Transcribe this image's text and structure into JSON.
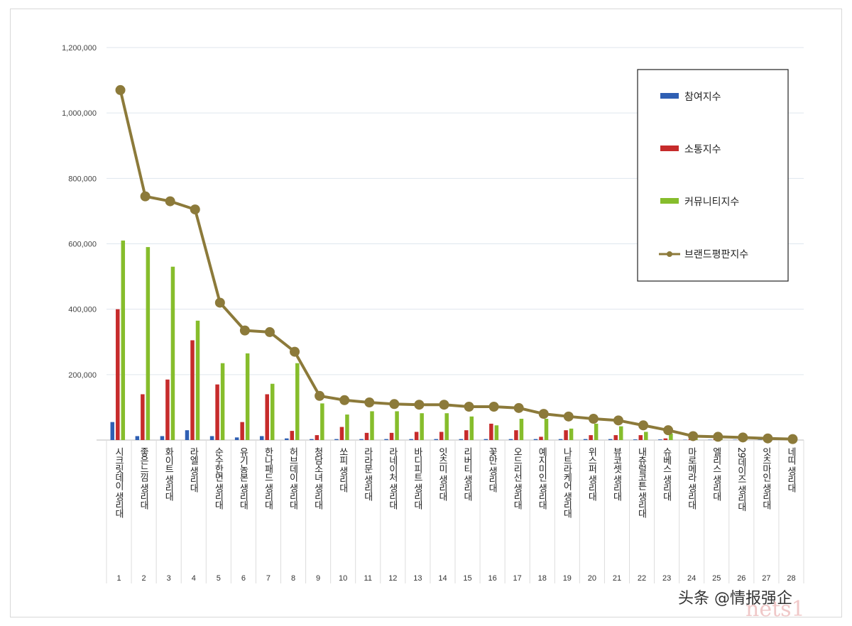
{
  "chart_data": {
    "type": "bar",
    "ylim": [
      0,
      1200000
    ],
    "yticks": [
      "1,200,000",
      "1,000,000",
      "800,000",
      "600,000",
      "400,000",
      "200,000"
    ],
    "categories": [
      "시크릿데이 생리대",
      "좋은느낌 생리대",
      "화이트 생리대",
      "라엘 생리대",
      "순수한면 생리대",
      "유기농본 생리대",
      "한나패드 생리대",
      "허브데이 생리대",
      "청담소녀 생리대",
      "쏘피 생리대",
      "라라문 생리대",
      "라네이처 생리대",
      "바디피트 생리대",
      "잇츠미 생리대",
      "리버티 생리대",
      "꽃만 생리대",
      "오드리선 생리대",
      "예지미인 생리대",
      "나트라케어 생리대",
      "위스퍼 생리대",
      "뷰코셋 생리대",
      "내츄럴코튼 생리대",
      "슈베스 생리대",
      "마로메라 생리대",
      "엘리스 생리대",
      "29데이즈 생리대",
      "잇츠마인 생리대",
      "네띠 생리대"
    ],
    "ranks": [
      "1",
      "2",
      "3",
      "4",
      "5",
      "6",
      "7",
      "8",
      "9",
      "10",
      "11",
      "12",
      "13",
      "14",
      "15",
      "16",
      "17",
      "18",
      "19",
      "20",
      "21",
      "22",
      "23",
      "24",
      "25",
      "26",
      "27",
      "28"
    ],
    "series": [
      {
        "name": "참여지수",
        "kind": "bar",
        "color": "#2f5fb3",
        "values": [
          55000,
          12000,
          12000,
          30000,
          12000,
          8000,
          12000,
          5000,
          3000,
          3000,
          3000,
          3000,
          3000,
          3000,
          3000,
          3000,
          3000,
          3000,
          3000,
          3000,
          3000,
          2000,
          2000,
          1000,
          1000,
          1000,
          1000,
          1000
        ]
      },
      {
        "name": "소통지수",
        "kind": "bar",
        "color": "#c62b2b",
        "values": [
          400000,
          140000,
          185000,
          305000,
          170000,
          55000,
          140000,
          28000,
          15000,
          40000,
          22000,
          22000,
          25000,
          25000,
          30000,
          50000,
          30000,
          10000,
          30000,
          15000,
          15000,
          15000,
          5000,
          3000,
          3000,
          3000,
          3000,
          3000
        ]
      },
      {
        "name": "커뮤니티지수",
        "kind": "bar",
        "color": "#86bd2c",
        "values": [
          610000,
          590000,
          530000,
          365000,
          235000,
          265000,
          172000,
          235000,
          112000,
          78000,
          88000,
          88000,
          82000,
          82000,
          72000,
          45000,
          65000,
          65000,
          35000,
          50000,
          42000,
          25000,
          20000,
          5000,
          5000,
          5000,
          5000,
          5000
        ]
      },
      {
        "name": "브랜드평판지수",
        "kind": "line",
        "color": "#8c7a3a",
        "values": [
          1070000,
          745000,
          730000,
          705000,
          420000,
          335000,
          330000,
          270000,
          135000,
          122000,
          115000,
          110000,
          108000,
          108000,
          102000,
          102000,
          98000,
          80000,
          72000,
          65000,
          60000,
          45000,
          30000,
          12000,
          10000,
          8000,
          5000,
          3000
        ]
      }
    ],
    "legend_position": "top-right",
    "grid": true
  },
  "watermark": "头条 @情报强企",
  "watermark_faint": "nets1"
}
